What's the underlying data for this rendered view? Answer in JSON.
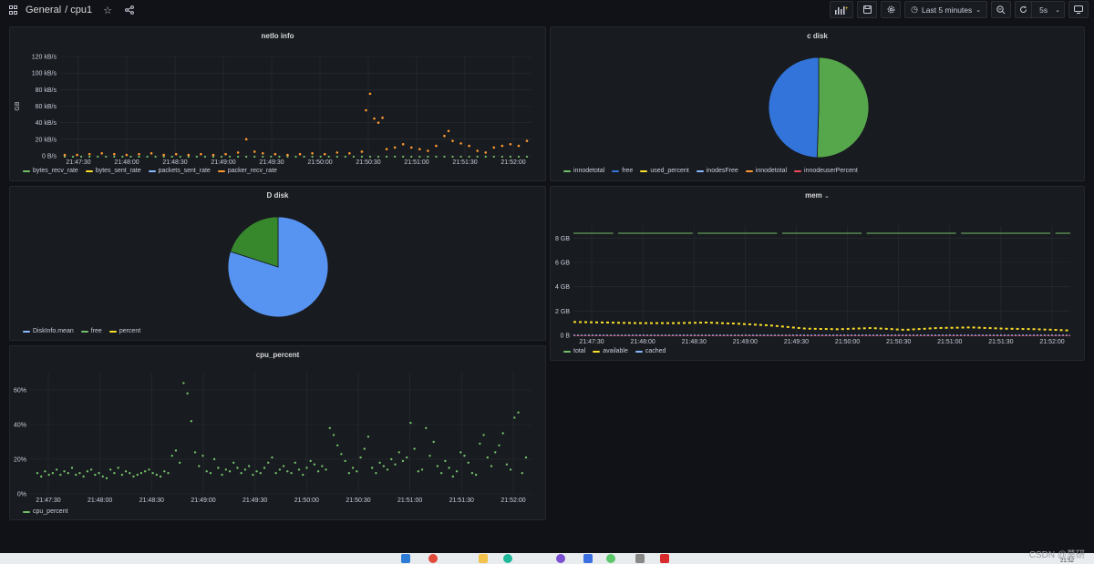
{
  "header": {
    "folder": "General",
    "dashboard": "/ cpu1",
    "time_range": "Last 5 minutes",
    "refresh": "5s"
  },
  "panels": {
    "netio": {
      "title": "netIo info",
      "ylabel": "GB",
      "legend": [
        {
          "name": "bytes_recv_rate",
          "color": "#73bf69"
        },
        {
          "name": "bytes_sent_rate",
          "color": "#fade2a"
        },
        {
          "name": "packets_sent_rate",
          "color": "#8ab8ff"
        },
        {
          "name": "packer_recv_rate",
          "color": "#ff9830"
        }
      ]
    },
    "cdisk": {
      "title": "c disk",
      "legend": [
        {
          "name": "innodetotal",
          "color": "#73bf69"
        },
        {
          "name": "free",
          "color": "#3274d9"
        },
        {
          "name": "used_percent",
          "color": "#fade2a"
        },
        {
          "name": "inodesFree",
          "color": "#8ab8ff"
        },
        {
          "name": "innodetotal",
          "color": "#ff9830"
        },
        {
          "name": "innodeuserPercent",
          "color": "#f2495c"
        }
      ]
    },
    "ddisk": {
      "title": "D disk",
      "legend": [
        {
          "name": "DiskInfo.mean",
          "color": "#8ab8ff"
        },
        {
          "name": "free",
          "color": "#73bf69"
        },
        {
          "name": "percent",
          "color": "#fade2a"
        }
      ]
    },
    "mem": {
      "title": "mem",
      "legend": [
        {
          "name": "total",
          "color": "#73bf69"
        },
        {
          "name": "available",
          "color": "#fade2a"
        },
        {
          "name": "cached",
          "color": "#8ab8ff"
        }
      ]
    },
    "cpu": {
      "title": "cpu_percent",
      "legend": [
        {
          "name": "cpu_percent",
          "color": "#73bf69"
        }
      ]
    }
  },
  "chart_data": [
    {
      "type": "scatter",
      "title": "netIo info",
      "ylabel": "GB",
      "x_ticks": [
        "21:47:30",
        "21:48:00",
        "21:48:30",
        "21:49:00",
        "21:49:30",
        "21:50:00",
        "21:50:30",
        "21:51:00",
        "21:51:30",
        "21:52:00"
      ],
      "y_ticks": [
        "0 B/s",
        "20 kB/s",
        "40 kB/s",
        "60 kB/s",
        "80 kB/s",
        "100 kB/s",
        "120 kB/s"
      ],
      "ylim": [
        0,
        120
      ],
      "series": [
        {
          "name": "packer_recv_rate",
          "color": "#ff9830",
          "points": [
            [
              0,
              1
            ],
            [
              3,
              1
            ],
            [
              6,
              2
            ],
            [
              9,
              3
            ],
            [
              12,
              2
            ],
            [
              15,
              1
            ],
            [
              18,
              2
            ],
            [
              21,
              3
            ],
            [
              24,
              1
            ],
            [
              27,
              2
            ],
            [
              30,
              1
            ],
            [
              33,
              2
            ],
            [
              36,
              1
            ],
            [
              39,
              2
            ],
            [
              42,
              4
            ],
            [
              44,
              20
            ],
            [
              46,
              5
            ],
            [
              48,
              3
            ],
            [
              51,
              2
            ],
            [
              54,
              1
            ],
            [
              57,
              2
            ],
            [
              60,
              3
            ],
            [
              63,
              2
            ],
            [
              66,
              4
            ],
            [
              69,
              3
            ],
            [
              72,
              5
            ],
            [
              73,
              55
            ],
            [
              74,
              75
            ],
            [
              75,
              45
            ],
            [
              76,
              40
            ],
            [
              77,
              46
            ],
            [
              78,
              8
            ],
            [
              80,
              10
            ],
            [
              82,
              14
            ],
            [
              84,
              10
            ],
            [
              86,
              8
            ],
            [
              88,
              6
            ],
            [
              90,
              12
            ],
            [
              92,
              24
            ],
            [
              93,
              30
            ],
            [
              94,
              18
            ],
            [
              96,
              15
            ],
            [
              98,
              12
            ],
            [
              100,
              6
            ],
            [
              102,
              4
            ],
            [
              104,
              10
            ],
            [
              106,
              12
            ],
            [
              108,
              14
            ],
            [
              110,
              12
            ],
            [
              112,
              18
            ]
          ]
        },
        {
          "name": "bytes_recv_rate",
          "color": "#73bf69",
          "points": [
            [
              0,
              0
            ],
            [
              10,
              0
            ],
            [
              20,
              0
            ],
            [
              30,
              0
            ],
            [
              40,
              0
            ],
            [
              50,
              0
            ],
            [
              60,
              0
            ],
            [
              70,
              0
            ],
            [
              80,
              0
            ],
            [
              90,
              0
            ],
            [
              100,
              0
            ],
            [
              110,
              0
            ]
          ]
        }
      ]
    },
    {
      "type": "pie",
      "title": "c disk",
      "slices": [
        {
          "name": "innodetotal",
          "value": 50.5,
          "color": "#56a64b"
        },
        {
          "name": "free",
          "value": 49.5,
          "color": "#3274d9"
        }
      ]
    },
    {
      "type": "pie",
      "title": "D disk",
      "slices": [
        {
          "name": "DiskInfo.mean",
          "value": 80,
          "color": "#5794f2"
        },
        {
          "name": "free",
          "value": 20,
          "color": "#37872d"
        }
      ]
    },
    {
      "type": "line",
      "title": "mem",
      "x_ticks": [
        "21:47:30",
        "21:48:00",
        "21:48:30",
        "21:49:00",
        "21:49:30",
        "21:50:00",
        "21:50:30",
        "21:51:00",
        "21:51:30",
        "21:52:00"
      ],
      "y_ticks": [
        "0 B",
        "2 GB",
        "4 GB",
        "6 GB",
        "8 GB"
      ],
      "ylim": [
        0,
        9
      ],
      "series": [
        {
          "name": "total",
          "values": [
            8.4,
            8.4,
            8.4,
            8.4,
            8.4,
            8.4,
            8.4,
            8.4,
            8.4,
            8.4,
            8.4
          ]
        },
        {
          "name": "available",
          "values": [
            1.1,
            1.05,
            1.0,
            1.0,
            1.05,
            0.95,
            0.8,
            0.55,
            0.5,
            0.6,
            0.45,
            0.6,
            0.65,
            0.55,
            0.5,
            0.4
          ]
        },
        {
          "name": "cached",
          "values": [
            0,
            0,
            0,
            0,
            0,
            0,
            0,
            0,
            0,
            0,
            0
          ]
        }
      ]
    },
    {
      "type": "scatter",
      "title": "cpu_percent",
      "x_ticks": [
        "21:47:30",
        "21:48:00",
        "21:48:30",
        "21:49:00",
        "21:49:30",
        "21:50:00",
        "21:50:30",
        "21:51:00",
        "21:51:30",
        "21:52:00"
      ],
      "y_ticks": [
        "0%",
        "20%",
        "40%",
        "60%"
      ],
      "ylim": [
        0,
        70
      ],
      "series": [
        {
          "name": "cpu_percent",
          "values": [
            12,
            10,
            13,
            11,
            12,
            14,
            11,
            13,
            12,
            15,
            11,
            12,
            10,
            13,
            14,
            11,
            12,
            10,
            9,
            14,
            12,
            15,
            11,
            13,
            12,
            10,
            11,
            12,
            13,
            14,
            12,
            11,
            10,
            13,
            12,
            22,
            25,
            18,
            64,
            58,
            42,
            24,
            16,
            22,
            13,
            12,
            20,
            15,
            11,
            14,
            13,
            18,
            15,
            12,
            14,
            16,
            11,
            13,
            12,
            15,
            18,
            21,
            12,
            14,
            16,
            13,
            12,
            18,
            14,
            11,
            15,
            19,
            17,
            13,
            16,
            14,
            38,
            34,
            28,
            23,
            19,
            12,
            15,
            13,
            21,
            26,
            33,
            15,
            12,
            18,
            16,
            14,
            20,
            17,
            24,
            19,
            21,
            41,
            26,
            13,
            14,
            38,
            22,
            30,
            16,
            12,
            19,
            15,
            10,
            13,
            24,
            22,
            18,
            12,
            11,
            29,
            34,
            21,
            16,
            24,
            28,
            35,
            17,
            14,
            44,
            47,
            12,
            21
          ]
        }
      ]
    }
  ],
  "footer": {
    "watermark": "CSDN @莫研",
    "clock": "21:52"
  }
}
